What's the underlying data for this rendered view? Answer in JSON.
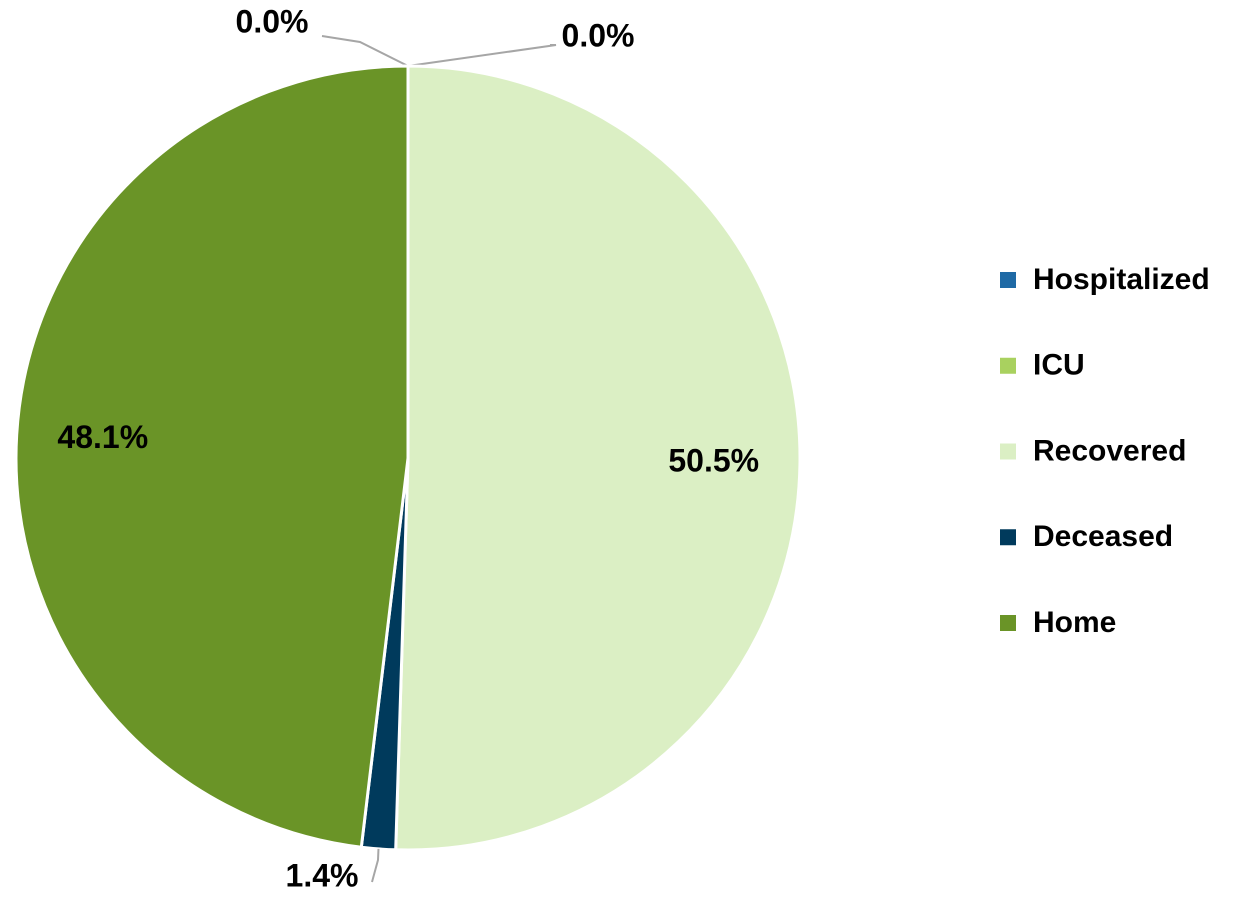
{
  "chart_data": {
    "type": "pie",
    "categories": [
      "Hospitalized",
      "ICU",
      "Recovered",
      "Deceased",
      "Home"
    ],
    "values": [
      0.0,
      0.0,
      50.5,
      1.4,
      48.1
    ],
    "value_labels": [
      "0.0%",
      "0.0%",
      "50.5%",
      "1.4%",
      "48.1%"
    ],
    "colors": [
      "#1f6aa5",
      "#a9d15f",
      "#dbefc4",
      "#003a5c",
      "#6a9427"
    ],
    "legend": "right"
  }
}
